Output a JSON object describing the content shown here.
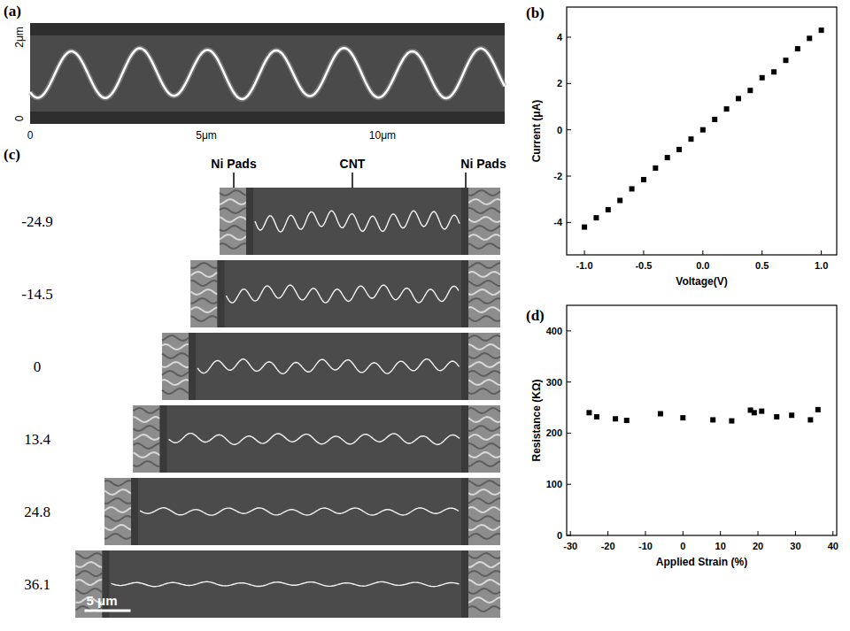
{
  "figure": {
    "a": {
      "letter": "(a)",
      "x_labels": [
        "0",
        "5μm",
        "10μm"
      ],
      "y_labels": [
        "0",
        "2μm"
      ]
    },
    "c": {
      "letter": "(c)",
      "strains": [
        -24.9,
        -14.5,
        0,
        13.4,
        24.8,
        36.1
      ],
      "labels": [
        "Ni Pads",
        "CNT",
        "Ni Pads"
      ],
      "scale_bar": "5 μm"
    }
  },
  "chart_data": [
    {
      "type": "scatter",
      "panel_label": "(b)",
      "x_label": "Voltage(V)",
      "y_label": "Current  (μA)",
      "x": [
        -1.0,
        -0.9,
        -0.8,
        -0.7,
        -0.6,
        -0.5,
        -0.4,
        -0.3,
        -0.2,
        -0.1,
        0.0,
        0.1,
        0.2,
        0.3,
        0.4,
        0.5,
        0.6,
        0.7,
        0.8,
        0.9,
        1.0
      ],
      "values": [
        -4.2,
        -3.8,
        -3.45,
        -3.05,
        -2.55,
        -2.15,
        -1.65,
        -1.2,
        -0.85,
        -0.4,
        0.0,
        0.45,
        0.9,
        1.35,
        1.7,
        2.25,
        2.5,
        3.0,
        3.5,
        3.95,
        4.3
      ],
      "color": "#000000",
      "marker": "square",
      "xlim": [
        -1.15,
        1.13
      ],
      "xticks": [
        {
          "value": -1,
          "label": "-1.0"
        },
        {
          "value": -0.5,
          "label": "-0.5"
        },
        {
          "value": 0,
          "label": "0.0"
        },
        {
          "value": 0.5,
          "label": "0.5"
        },
        {
          "value": 1,
          "label": "1.0"
        }
      ],
      "ylim": [
        -5.4,
        5.3
      ],
      "yticks": [
        -4,
        -2,
        0,
        2,
        4
      ],
      "grid": false
    },
    {
      "type": "scatter",
      "panel_label": "(d)",
      "x_label": "Applied Strain (%)",
      "y_label": "Resistance (KΩ)",
      "x": [
        -25,
        -23,
        -18,
        -15,
        -6,
        0,
        8,
        13,
        18,
        19,
        21,
        25,
        29,
        34,
        36
      ],
      "values": [
        240,
        232,
        228,
        225,
        238,
        230,
        226,
        224,
        245,
        240,
        243,
        232,
        235,
        226,
        246
      ],
      "color": "#000000",
      "marker": "square",
      "xlim": [
        -31,
        41
      ],
      "xticks": [
        -30,
        -20,
        -10,
        0,
        10,
        20,
        30,
        40
      ],
      "ylim": [
        0,
        450
      ],
      "yticks": [
        0,
        100,
        200,
        300,
        400
      ],
      "grid": false
    }
  ]
}
